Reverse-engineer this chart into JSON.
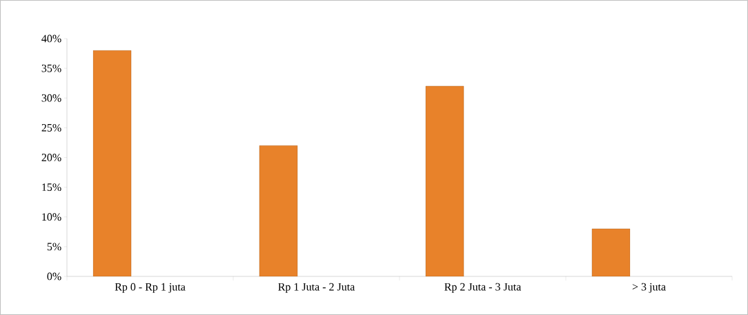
{
  "chart_data": {
    "type": "bar",
    "categories": [
      "Rp 0 - Rp 1 juta",
      "Rp 1 Juta - 2 Juta",
      "Rp 2 Juta - 3 Juta",
      "> 3 juta"
    ],
    "values": [
      38,
      22,
      32,
      8
    ],
    "color": "#e8822a",
    "ylim": [
      0,
      40
    ],
    "yticks": [
      {
        "value": 0,
        "label": "0%"
      },
      {
        "value": 5,
        "label": "5%"
      },
      {
        "value": 10,
        "label": "10%"
      },
      {
        "value": 15,
        "label": "15%"
      },
      {
        "value": 20,
        "label": "20%"
      },
      {
        "value": 25,
        "label": "25%"
      },
      {
        "value": 30,
        "label": "30%"
      },
      {
        "value": 35,
        "label": "35%"
      },
      {
        "value": 40,
        "label": "40%"
      }
    ],
    "grid": false
  }
}
